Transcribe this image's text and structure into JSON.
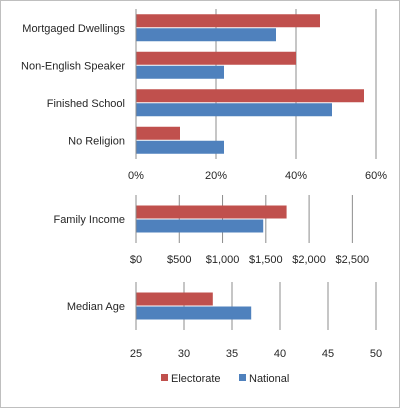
{
  "chart_data": [
    {
      "type": "bar",
      "orientation": "horizontal",
      "categories": [
        "Mortgaged Dwellings",
        "Non-English Speaker",
        "Finished School",
        "No Religion"
      ],
      "series": [
        {
          "name": "Electorate",
          "values": [
            46,
            40,
            57,
            11
          ]
        },
        {
          "name": "National",
          "values": [
            35,
            22,
            49,
            22
          ]
        }
      ],
      "xlim": [
        0,
        60
      ],
      "xticks": [
        0,
        20,
        40,
        60
      ],
      "ticklabels": [
        "0%",
        "20%",
        "40%",
        "60%"
      ],
      "grid": true
    },
    {
      "type": "bar",
      "orientation": "horizontal",
      "categories": [
        "Family Income"
      ],
      "series": [
        {
          "name": "Electorate",
          "values": [
            1740
          ]
        },
        {
          "name": "National",
          "values": [
            1470
          ]
        }
      ],
      "xlim": [
        0,
        2750
      ],
      "xticks": [
        0,
        500,
        1000,
        1500,
        2000,
        2500
      ],
      "ticklabels": [
        "$0",
        "$500",
        "$1,000",
        "$1,500",
        "$2,000",
        "$2,500"
      ],
      "grid": true
    },
    {
      "type": "bar",
      "orientation": "horizontal",
      "categories": [
        "Median Age"
      ],
      "series": [
        {
          "name": "Electorate",
          "values": [
            33
          ]
        },
        {
          "name": "National",
          "values": [
            37
          ]
        }
      ],
      "xlim": [
        25,
        50
      ],
      "xticks": [
        25,
        30,
        35,
        40,
        45,
        50
      ],
      "ticklabels": [
        "25",
        "30",
        "35",
        "40",
        "45",
        "50"
      ],
      "grid": true
    }
  ],
  "legend": {
    "position": "bottom",
    "items": [
      {
        "name": "Electorate",
        "color": "#c0504d"
      },
      {
        "name": "National",
        "color": "#4f81bd"
      }
    ]
  },
  "colors": {
    "electorate": "#c0504d",
    "national": "#4f81bd",
    "grid": "#8c8c8c"
  }
}
